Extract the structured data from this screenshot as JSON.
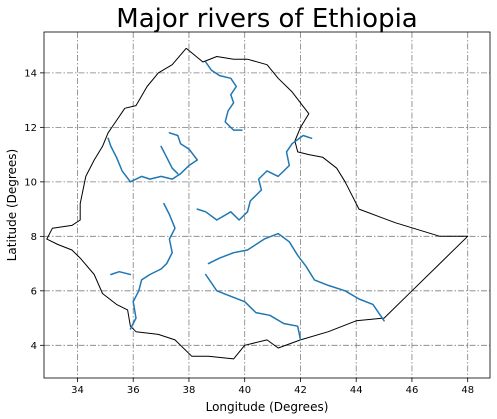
{
  "chart_data": {
    "type": "map",
    "title": "Major rivers of Ethiopia",
    "xlabel": "Longitude (Degrees)",
    "ylabel": "Latitude (Degrees)",
    "xlim": [
      32.8,
      48.8
    ],
    "ylim": [
      2.8,
      15.5
    ],
    "xticks": [
      34,
      36,
      38,
      40,
      42,
      44,
      46,
      48
    ],
    "yticks": [
      4,
      6,
      8,
      10,
      12,
      14
    ],
    "grid": true,
    "colors": {
      "border": "#000000",
      "river": "#1f77b4",
      "grid": "#7f7f7f"
    },
    "border": [
      [
        37.9,
        14.9
      ],
      [
        38.5,
        14.4
      ],
      [
        39.0,
        14.6
      ],
      [
        39.6,
        14.5
      ],
      [
        40.1,
        14.5
      ],
      [
        40.8,
        14.3
      ],
      [
        41.2,
        13.8
      ],
      [
        41.7,
        13.3
      ],
      [
        42.3,
        12.5
      ],
      [
        42.0,
        12.0
      ],
      [
        41.8,
        11.5
      ],
      [
        41.9,
        11.1
      ],
      [
        42.3,
        11.0
      ],
      [
        42.8,
        10.9
      ],
      [
        43.3,
        10.5
      ],
      [
        43.6,
        10.0
      ],
      [
        44.1,
        9.0
      ],
      [
        45.4,
        8.5
      ],
      [
        47.0,
        8.0
      ],
      [
        48.0,
        8.0
      ],
      [
        47.0,
        7.0
      ],
      [
        46.0,
        6.0
      ],
      [
        45.0,
        5.0
      ],
      [
        44.0,
        4.9
      ],
      [
        43.0,
        4.5
      ],
      [
        42.0,
        4.2
      ],
      [
        41.2,
        3.9
      ],
      [
        40.8,
        4.2
      ],
      [
        40.0,
        4.0
      ],
      [
        39.6,
        3.5
      ],
      [
        38.7,
        3.6
      ],
      [
        38.1,
        3.6
      ],
      [
        37.5,
        4.2
      ],
      [
        36.9,
        4.4
      ],
      [
        36.1,
        4.5
      ],
      [
        35.9,
        4.7
      ],
      [
        35.8,
        5.3
      ],
      [
        35.4,
        5.5
      ],
      [
        34.9,
        5.9
      ],
      [
        34.6,
        6.6
      ],
      [
        34.1,
        7.2
      ],
      [
        33.8,
        7.5
      ],
      [
        33.3,
        7.7
      ],
      [
        32.9,
        7.9
      ],
      [
        33.1,
        8.3
      ],
      [
        33.8,
        8.4
      ],
      [
        34.1,
        8.6
      ],
      [
        34.1,
        9.2
      ],
      [
        34.3,
        10.2
      ],
      [
        34.6,
        10.8
      ],
      [
        34.9,
        11.3
      ],
      [
        35.1,
        11.8
      ],
      [
        35.3,
        12.1
      ],
      [
        35.7,
        12.7
      ],
      [
        36.1,
        12.8
      ],
      [
        36.5,
        13.5
      ],
      [
        36.9,
        14.0
      ],
      [
        37.4,
        14.3
      ],
      [
        37.9,
        14.9
      ]
    ],
    "rivers": [
      {
        "points": [
          [
            38.6,
            14.4
          ],
          [
            38.8,
            14.1
          ],
          [
            39.1,
            13.9
          ],
          [
            39.5,
            13.8
          ],
          [
            39.7,
            13.5
          ],
          [
            39.5,
            13.2
          ],
          [
            39.6,
            12.9
          ],
          [
            39.4,
            12.6
          ],
          [
            39.3,
            12.2
          ],
          [
            39.6,
            11.9
          ],
          [
            39.9,
            11.9
          ]
        ]
      },
      {
        "points": [
          [
            42.4,
            11.6
          ],
          [
            42.1,
            11.7
          ],
          [
            41.7,
            11.4
          ],
          [
            41.5,
            11.1
          ],
          [
            41.6,
            10.6
          ],
          [
            41.2,
            10.2
          ],
          [
            40.8,
            10.4
          ],
          [
            40.5,
            10.1
          ],
          [
            40.6,
            9.7
          ],
          [
            40.2,
            9.3
          ],
          [
            40.1,
            8.9
          ],
          [
            39.8,
            8.6
          ],
          [
            39.5,
            8.9
          ],
          [
            39.0,
            8.6
          ],
          [
            38.6,
            8.9
          ],
          [
            38.3,
            9.0
          ]
        ]
      },
      {
        "points": [
          [
            37.3,
            11.8
          ],
          [
            37.6,
            11.7
          ],
          [
            37.7,
            11.4
          ],
          [
            38.0,
            11.2
          ],
          [
            38.3,
            10.8
          ],
          [
            38.0,
            10.6
          ],
          [
            37.7,
            10.3
          ],
          [
            37.4,
            10.1
          ],
          [
            37.0,
            10.2
          ],
          [
            36.6,
            10.1
          ],
          [
            36.3,
            10.2
          ],
          [
            35.9,
            10.0
          ],
          [
            35.6,
            10.4
          ],
          [
            35.4,
            10.9
          ],
          [
            35.2,
            11.3
          ],
          [
            35.1,
            11.6
          ]
        ]
      },
      {
        "points": [
          [
            37.1,
            9.2
          ],
          [
            37.3,
            8.8
          ],
          [
            37.5,
            8.3
          ],
          [
            37.3,
            7.9
          ],
          [
            37.4,
            7.4
          ],
          [
            37.2,
            7.0
          ],
          [
            37.0,
            6.8
          ],
          [
            36.6,
            6.6
          ],
          [
            36.3,
            6.4
          ],
          [
            36.2,
            6.0
          ],
          [
            36.0,
            5.6
          ],
          [
            36.1,
            5.0
          ],
          [
            35.9,
            4.6
          ]
        ]
      },
      {
        "points": [
          [
            38.7,
            7.0
          ],
          [
            39.1,
            7.2
          ],
          [
            39.6,
            7.4
          ],
          [
            40.1,
            7.5
          ],
          [
            40.7,
            7.9
          ],
          [
            41.2,
            8.1
          ],
          [
            41.6,
            7.8
          ],
          [
            41.9,
            7.3
          ],
          [
            42.2,
            6.9
          ],
          [
            42.5,
            6.4
          ],
          [
            43.0,
            6.2
          ],
          [
            43.6,
            6.0
          ],
          [
            44.1,
            5.7
          ],
          [
            44.6,
            5.5
          ],
          [
            45.0,
            4.9
          ]
        ]
      },
      {
        "points": [
          [
            38.6,
            6.6
          ],
          [
            39.0,
            6.0
          ],
          [
            39.5,
            5.8
          ],
          [
            40.0,
            5.6
          ],
          [
            40.4,
            5.2
          ],
          [
            40.9,
            5.1
          ],
          [
            41.4,
            4.8
          ],
          [
            41.9,
            4.7
          ],
          [
            42.0,
            4.2
          ]
        ]
      },
      {
        "points": [
          [
            37.0,
            11.3
          ],
          [
            37.2,
            10.9
          ],
          [
            37.4,
            10.5
          ],
          [
            37.6,
            10.3
          ]
        ]
      },
      {
        "points": [
          [
            35.2,
            6.6
          ],
          [
            35.5,
            6.7
          ],
          [
            35.9,
            6.6
          ]
        ]
      }
    ]
  }
}
